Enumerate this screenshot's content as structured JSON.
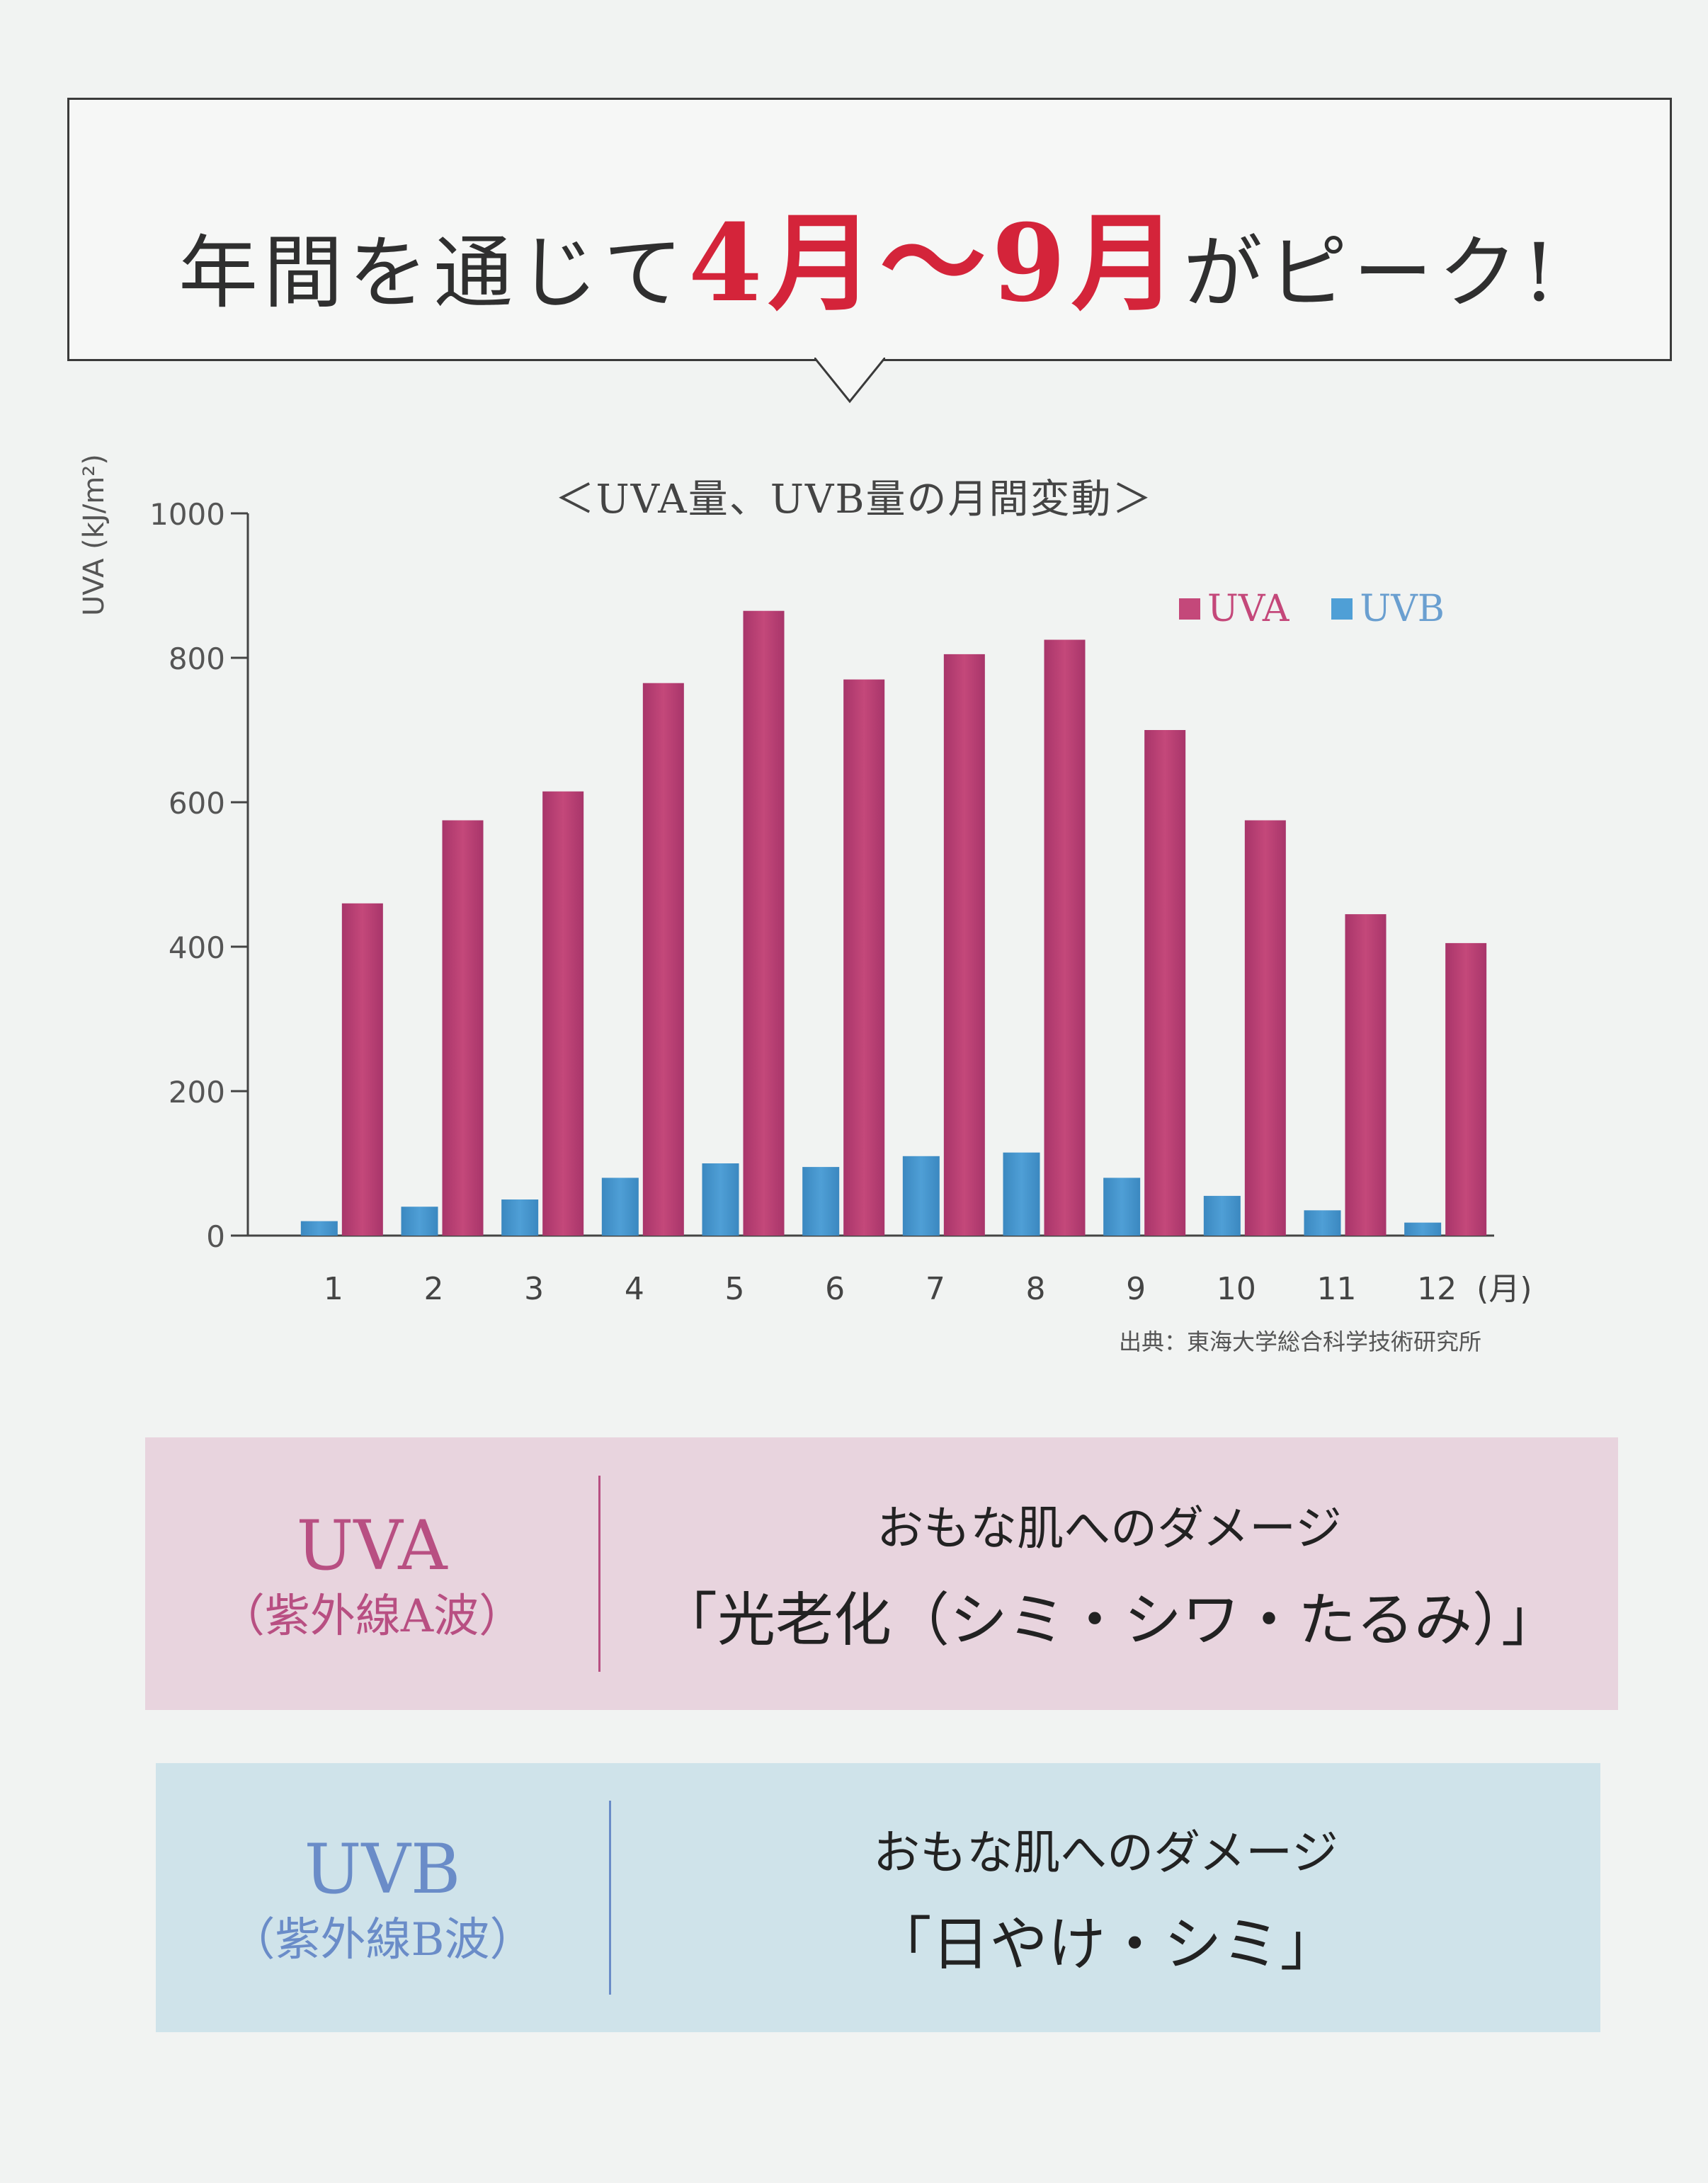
{
  "headline": {
    "prefix": "年間を通じて",
    "highlight": "4月～9月",
    "suffix": "がピーク!"
  },
  "colors": {
    "uva": "#c4487a",
    "uvb": "#4f9fd6",
    "accent": "#d4243a"
  },
  "chart_data": {
    "type": "bar",
    "title": "＜UVA量、UVB量の月間変動＞",
    "ylabel": "UVA (kJ/m²)",
    "xunit": "(月)",
    "ylim": [
      0,
      1000
    ],
    "yticks": [
      0,
      200,
      400,
      600,
      800,
      1000
    ],
    "categories": [
      "1",
      "2",
      "3",
      "4",
      "5",
      "6",
      "7",
      "8",
      "9",
      "10",
      "11",
      "12"
    ],
    "series": [
      {
        "name": "UVB",
        "values": [
          20,
          40,
          50,
          80,
          100,
          95,
          110,
          115,
          80,
          55,
          35,
          18
        ]
      },
      {
        "name": "UVA",
        "values": [
          460,
          575,
          615,
          765,
          865,
          770,
          805,
          825,
          700,
          575,
          445,
          405
        ]
      }
    ],
    "legend_position": "top-right",
    "grid": false
  },
  "source": "出典：東海大学総合科学技術研究所",
  "uva_info": {
    "name": "UVA",
    "name_full": "（紫外線A波）",
    "caption": "おもな肌へのダメージ",
    "damage": "「光老化（シミ・シワ・たるみ）」"
  },
  "uvb_info": {
    "name": "UVB",
    "name_full": "（紫外線B波）",
    "caption": "おもな肌へのダメージ",
    "damage": "「日やけ・シミ」"
  }
}
